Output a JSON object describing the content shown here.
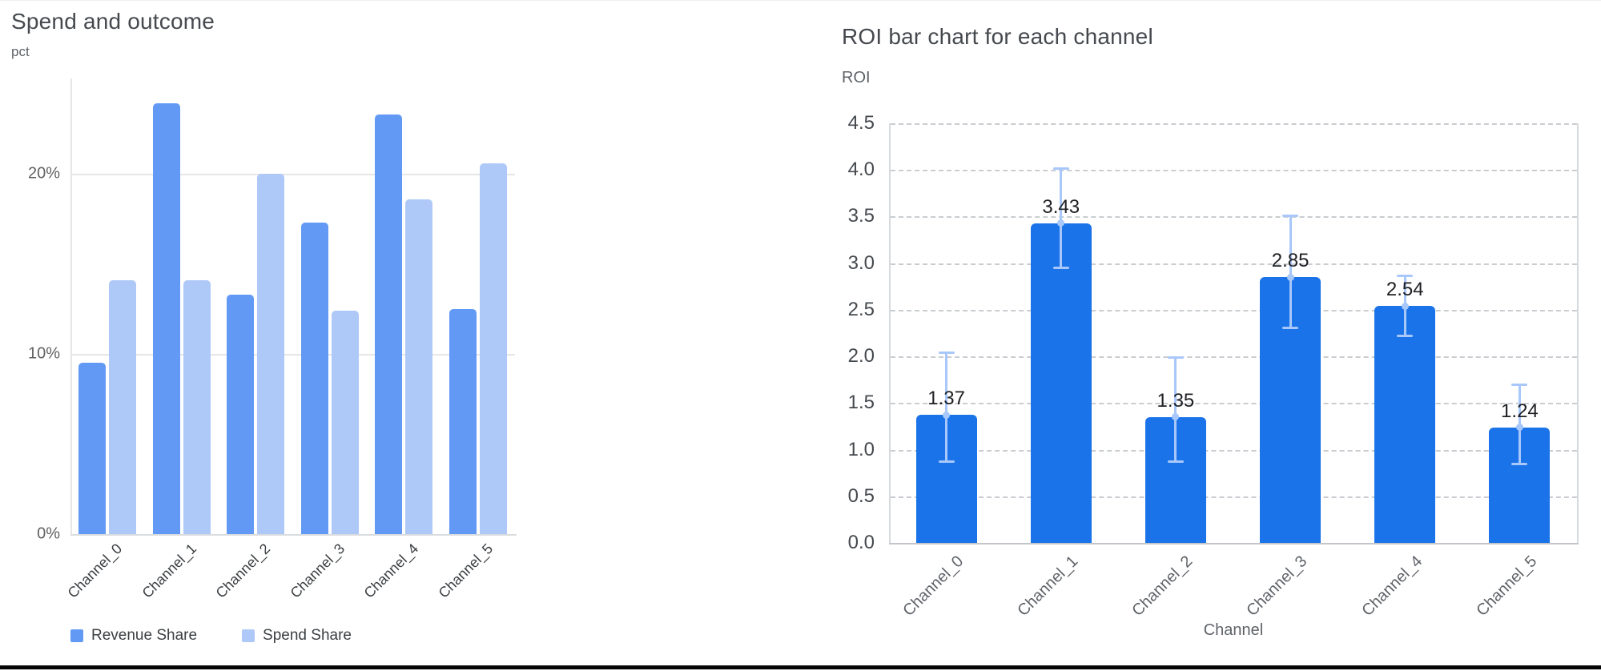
{
  "page": {
    "background": "#ffffff",
    "bottom_bar_color": "#050505"
  },
  "chart_data": [
    {
      "type": "bar",
      "title": "Spend and outcome",
      "ylabel": "pct",
      "xlabel": "",
      "categories": [
        "Channel_0",
        "Channel_1",
        "Channel_2",
        "Channel_3",
        "Channel_4",
        "Channel_5"
      ],
      "series": [
        {
          "name": "Revenue Share",
          "color": "#6199f5",
          "values": [
            9.5,
            23.9,
            13.3,
            17.3,
            23.3,
            12.5
          ]
        },
        {
          "name": "Spend Share",
          "color": "#aec9f8",
          "values": [
            14.1,
            14.1,
            20.0,
            12.4,
            18.6,
            20.6
          ]
        }
      ],
      "yticks": [
        "0%",
        "10%",
        "20%"
      ],
      "ytick_values": [
        0,
        10,
        20
      ],
      "ylim": [
        0,
        25.2
      ],
      "grid": "solid",
      "legend_position": "bottom"
    },
    {
      "type": "bar",
      "title": "ROI bar chart for each channel",
      "ylabel": "ROI",
      "xlabel": "Channel",
      "categories": [
        "Channel_0",
        "Channel_1",
        "Channel_2",
        "Channel_3",
        "Channel_4",
        "Channel_5"
      ],
      "values": [
        1.37,
        3.43,
        1.35,
        2.85,
        2.54,
        1.24
      ],
      "value_labels": [
        "1.37",
        "3.43",
        "1.35",
        "2.85",
        "2.54",
        "1.24"
      ],
      "error_high": [
        2.04,
        4.02,
        1.99,
        3.51,
        2.87,
        1.7
      ],
      "error_low": [
        0.88,
        2.95,
        0.88,
        2.31,
        2.22,
        0.85
      ],
      "bar_color": "#1a73e8",
      "error_color": "#a8c7fa",
      "yticks": [
        "0.0",
        "0.5",
        "1.0",
        "1.5",
        "2.0",
        "2.5",
        "3.0",
        "3.5",
        "4.0",
        "4.5"
      ],
      "ytick_values": [
        0,
        0.5,
        1,
        1.5,
        2,
        2.5,
        3,
        3.5,
        4,
        4.5
      ],
      "ylim": [
        0,
        4.5
      ],
      "grid": "dashed",
      "legend_position": "none"
    }
  ]
}
